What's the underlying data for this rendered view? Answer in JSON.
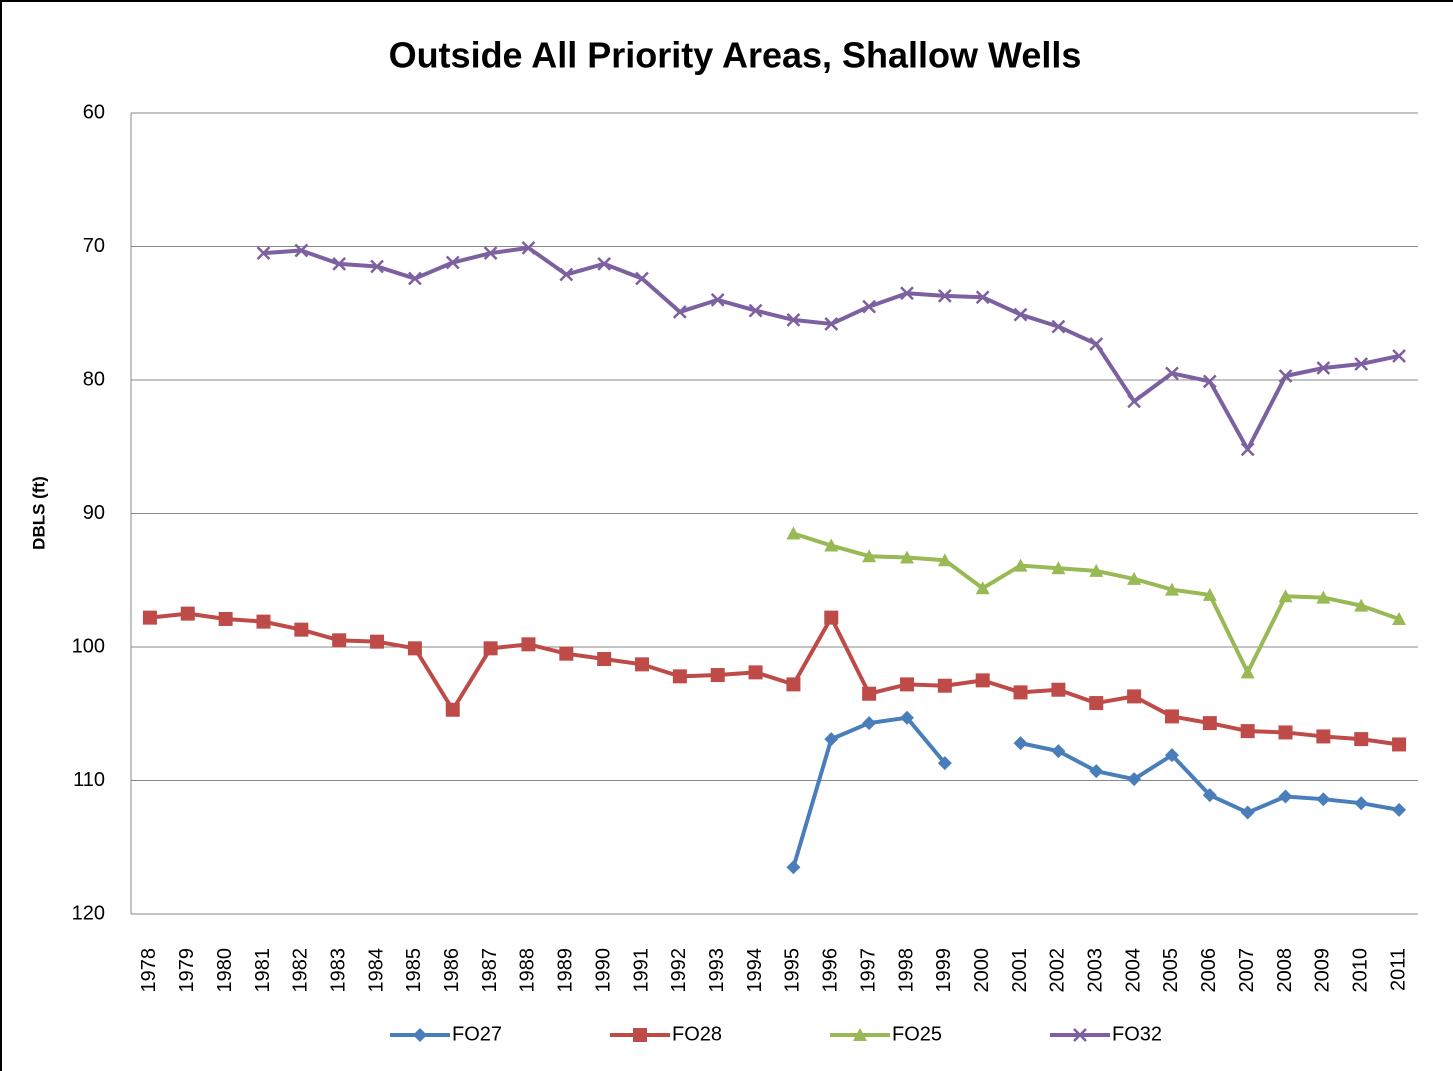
{
  "chart_data": {
    "type": "line",
    "title": "Outside All Priority Areas, Shallow Wells",
    "y_label": "DBLS (ft)",
    "categories": [
      "1978",
      "1979",
      "1980",
      "1981",
      "1982",
      "1983",
      "1984",
      "1985",
      "1986",
      "1987",
      "1988",
      "1989",
      "1990",
      "1991",
      "1992",
      "1993",
      "1994",
      "1995",
      "1996",
      "1997",
      "1998",
      "1999",
      "2000",
      "2001",
      "2002",
      "2003",
      "2004",
      "2005",
      "2006",
      "2007",
      "2008",
      "2009",
      "2010",
      "2011"
    ],
    "ylim": [
      60,
      120
    ],
    "y_inverted": true,
    "yticks": [
      60,
      70,
      80,
      90,
      100,
      110,
      120
    ],
    "grid": true,
    "legend": "bottom",
    "series": [
      {
        "name": "FO27",
        "color": "#4a7ebb",
        "marker": "diamond",
        "values": [
          null,
          null,
          null,
          null,
          null,
          null,
          null,
          null,
          null,
          null,
          null,
          null,
          null,
          null,
          null,
          null,
          null,
          116.5,
          106.9,
          105.7,
          105.3,
          108.7,
          null,
          107.2,
          107.8,
          109.3,
          109.9,
          108.1,
          111.1,
          112.4,
          111.2,
          111.4,
          111.7,
          112.2
        ]
      },
      {
        "name": "FO28",
        "color": "#be4b48",
        "marker": "square",
        "values": [
          97.8,
          97.5,
          97.9,
          98.1,
          98.7,
          99.5,
          99.6,
          100.1,
          104.7,
          100.1,
          99.8,
          100.5,
          100.9,
          101.3,
          102.2,
          102.1,
          101.9,
          102.8,
          97.8,
          103.5,
          102.8,
          102.9,
          102.5,
          103.4,
          103.2,
          104.2,
          103.7,
          105.2,
          105.7,
          106.3,
          106.4,
          106.7,
          106.9,
          107.3
        ]
      },
      {
        "name": "FO25",
        "color": "#98b954",
        "marker": "triangle",
        "values": [
          null,
          null,
          null,
          null,
          null,
          null,
          null,
          null,
          null,
          null,
          null,
          null,
          null,
          null,
          null,
          null,
          null,
          91.5,
          92.4,
          93.2,
          93.3,
          93.5,
          95.6,
          93.9,
          94.1,
          94.3,
          94.9,
          95.7,
          96.1,
          101.9,
          96.2,
          96.3,
          96.9,
          97.9
        ]
      },
      {
        "name": "FO32",
        "color": "#7d60a0",
        "marker": "x",
        "values": [
          null,
          null,
          null,
          70.5,
          70.3,
          71.3,
          71.5,
          72.4,
          71.2,
          70.5,
          70.1,
          72.1,
          71.3,
          72.4,
          74.9,
          74.0,
          74.8,
          75.5,
          75.8,
          74.5,
          73.5,
          73.7,
          73.8,
          75.1,
          76.0,
          77.3,
          81.6,
          79.5,
          80.1,
          85.2,
          79.7,
          79.1,
          78.8,
          78.2
        ]
      }
    ]
  }
}
